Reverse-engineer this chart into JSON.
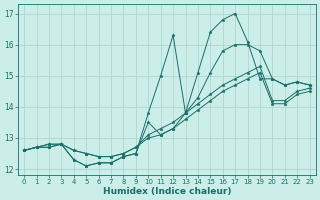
{
  "xlabel": "Humidex (Indice chaleur)",
  "xlim": [
    -0.5,
    23.5
  ],
  "ylim": [
    11.8,
    17.3
  ],
  "yticks": [
    12,
    13,
    14,
    15,
    16,
    17
  ],
  "xticks": [
    0,
    1,
    2,
    3,
    4,
    5,
    6,
    7,
    8,
    9,
    10,
    11,
    12,
    13,
    14,
    15,
    16,
    17,
    18,
    19,
    20,
    21,
    22,
    23
  ],
  "background_color": "#cceee8",
  "grid_color": "#b0d4ce",
  "line_color": "#1a6e6a",
  "series": [
    [
      12.6,
      12.7,
      12.7,
      12.8,
      12.3,
      12.1,
      12.2,
      12.2,
      12.4,
      12.5,
      13.8,
      15.0,
      16.3,
      13.8,
      15.1,
      16.4,
      16.8,
      17.0,
      16.1,
      14.9,
      14.9,
      14.7,
      14.8,
      14.7
    ],
    [
      12.6,
      12.7,
      12.7,
      12.8,
      12.3,
      12.1,
      12.2,
      12.2,
      12.4,
      12.5,
      13.5,
      13.1,
      13.3,
      13.8,
      14.3,
      15.1,
      15.8,
      16.0,
      16.0,
      15.8,
      14.9,
      14.7,
      14.8,
      14.7
    ],
    [
      12.6,
      12.7,
      12.8,
      12.8,
      12.6,
      12.5,
      12.4,
      12.4,
      12.5,
      12.7,
      13.1,
      13.3,
      13.5,
      13.8,
      14.1,
      14.4,
      14.7,
      14.9,
      15.1,
      15.3,
      14.2,
      14.2,
      14.5,
      14.6
    ],
    [
      12.6,
      12.7,
      12.8,
      12.8,
      12.6,
      12.5,
      12.4,
      12.4,
      12.5,
      12.7,
      13.0,
      13.1,
      13.3,
      13.6,
      13.9,
      14.2,
      14.5,
      14.7,
      14.9,
      15.1,
      14.1,
      14.1,
      14.4,
      14.5
    ]
  ]
}
